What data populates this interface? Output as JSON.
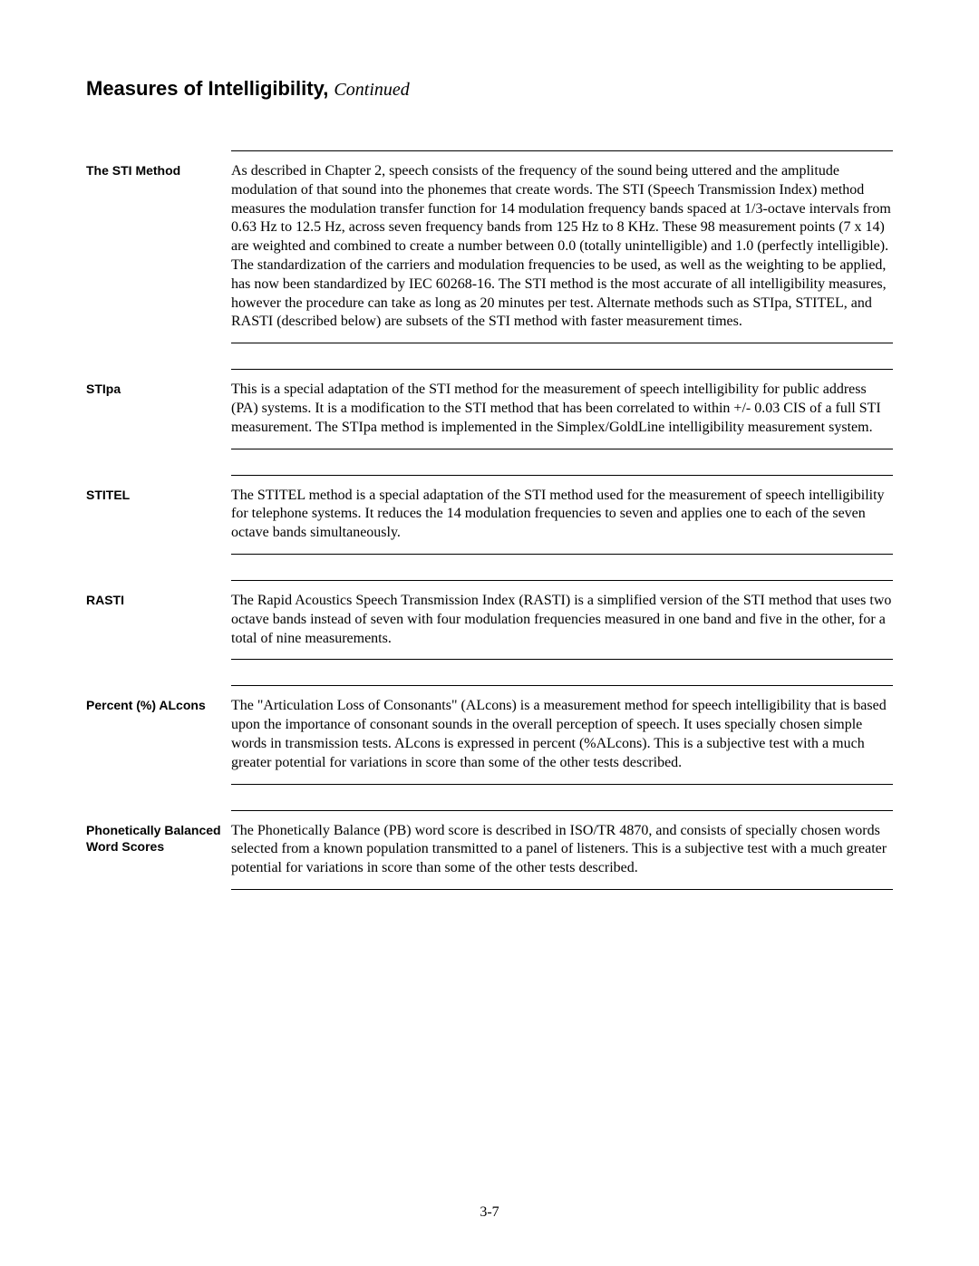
{
  "page": {
    "title_main": "Measures of Intelligibility, ",
    "title_continued": "Continued",
    "page_number": "3-7"
  },
  "sections": [
    {
      "label": "The STI Method",
      "body": "As described in Chapter 2, speech consists of the frequency of the sound being uttered and the amplitude modulation of that sound into the phonemes that create words.  The STI (Speech Transmission Index) method measures the modulation transfer function for 14 modulation frequency bands spaced at 1/3-octave intervals from 0.63 Hz to 12.5 Hz, across seven frequency bands from 125 Hz to 8 KHz.  These 98 measurement points (7 x 14) are weighted and combined to create a number between 0.0 (totally unintelligible) and 1.0 (perfectly intelligible).  The standardization of the carriers and modulation frequencies to be used, as well as the weighting to be applied, has now been standardized by IEC 60268-16.  The STI method is the most accurate of all intelligibility measures, however the procedure can take as long as 20 minutes per test.  Alternate methods such as STIpa, STITEL, and RASTI (described below) are subsets of the STI method with faster measurement times."
    },
    {
      "label": "STIpa",
      "body": "This is a special adaptation of the STI method for the measurement of speech intelligibility for public address (PA) systems.  It is a modification to the STI method that has been correlated to within +/- 0.03 CIS of a full STI measurement.  The STIpa method is implemented in the Simplex/GoldLine intelligibility measurement system."
    },
    {
      "label": "STITEL",
      "body": "The STITEL method is a special adaptation of the STI method used for the measurement of speech intelligibility for telephone systems.  It reduces the 14 modulation frequencies to seven and applies one to each of the seven octave bands simultaneously."
    },
    {
      "label": "RASTI",
      "body": "The Rapid Acoustics Speech Transmission Index (RASTI) is a simplified version of the STI method that uses two octave bands instead of seven with four modulation frequencies measured in one band and five in the other, for a total of nine measurements."
    },
    {
      "label": "Percent (%) ALcons",
      "body": "The \"Articulation Loss of Consonants\" (ALcons) is a measurement method for speech intelligibility that is based upon the importance of consonant sounds in the overall perception of speech.  It uses specially chosen simple words in transmission tests.  ALcons is expressed in percent (%ALcons).  This is a subjective test with a much greater potential for variations in score than some of the other tests described."
    },
    {
      "label": "Phonetically Balanced Word Scores",
      "body": "The Phonetically Balance (PB) word score is described in ISO/TR 4870, and consists of specially chosen words selected from a known population transmitted to a panel of listeners.  This is a subjective test with a much greater potential for variations in score than some of the other tests described."
    }
  ],
  "typography": {
    "title_fontsize": 22,
    "label_fontsize": 14,
    "body_fontsize": 16,
    "body_font": "Times New Roman",
    "label_font": "Arial"
  },
  "colors": {
    "background": "#ffffff",
    "text": "#000000",
    "rule": "#000000"
  }
}
